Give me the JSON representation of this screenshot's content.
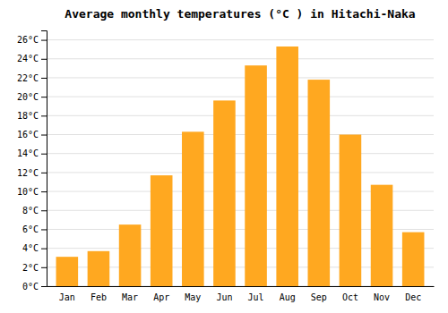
{
  "chart_data": {
    "type": "bar",
    "title": "Average monthly temperatures (°C ) in Hitachi-Naka",
    "categories": [
      "Jan",
      "Feb",
      "Mar",
      "Apr",
      "May",
      "Jun",
      "Jul",
      "Aug",
      "Sep",
      "Oct",
      "Nov",
      "Dec"
    ],
    "values": [
      3.1,
      3.7,
      6.5,
      11.7,
      16.3,
      19.6,
      23.3,
      25.3,
      21.8,
      16.0,
      10.7,
      5.7
    ],
    "color": "#FFA820",
    "ylim": [
      0,
      27
    ],
    "yticks": [
      {
        "value": 0,
        "label": "0°C"
      },
      {
        "value": 2,
        "label": "2°C"
      },
      {
        "value": 4,
        "label": "4°C"
      },
      {
        "value": 6,
        "label": "6°C"
      },
      {
        "value": 8,
        "label": "8°C"
      },
      {
        "value": 10,
        "label": "10°C"
      },
      {
        "value": 12,
        "label": "12°C"
      },
      {
        "value": 14,
        "label": "14°C"
      },
      {
        "value": 16,
        "label": "16°C"
      },
      {
        "value": 18,
        "label": "18°C"
      },
      {
        "value": 20,
        "label": "20°C"
      },
      {
        "value": 22,
        "label": "22°C"
      },
      {
        "value": 24,
        "label": "24°C"
      },
      {
        "value": 26,
        "label": "26°C"
      }
    ],
    "grid": true
  }
}
